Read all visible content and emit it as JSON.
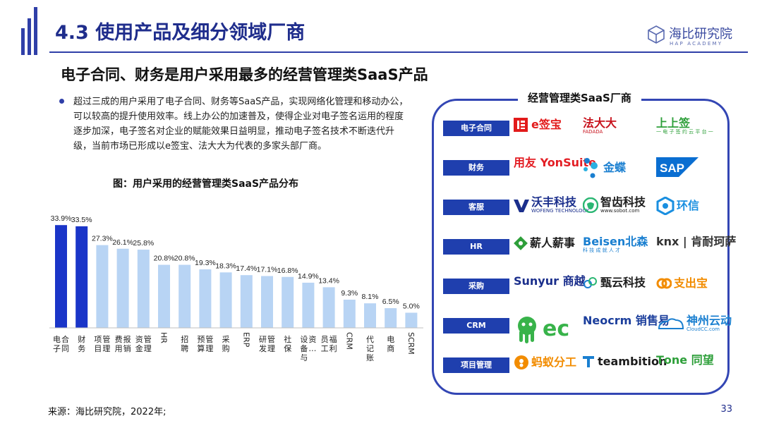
{
  "header": {
    "title": "4.3 使用产品及细分领域厂商",
    "logo_name": "海比研究院",
    "logo_sub": "HAP ACADEMY"
  },
  "subtitle": "电子合同、财务是用户采用最多的经营管理类SaaS产品",
  "bullet": "超过三成的用户采用了电子合同、财务等SaaS产品，实现网络化管理和移动办公，可以较高的提升使用效率。线上办公的加速普及，使得企业对电子签名运用的程度逐步加深，电子签名对企业的赋能效果日益明显，推动电子签名技术不断迭代升级，当前市场已形成以e签宝、法大大为代表的多家头部厂商。",
  "figure_title": "图：用户采用的经营管理类SaaS产品分布",
  "chart_data": {
    "type": "bar",
    "categories": [
      "电子合同",
      "财务",
      "项目管理",
      "费用报销",
      "资金管理",
      "HR",
      "招聘",
      "预算管理",
      "采购",
      "ERP",
      "研发管理",
      "社保",
      "设备与资…",
      "员工福利",
      "CRM",
      "代记账",
      "电商",
      "SCRM"
    ],
    "values": [
      33.9,
      33.5,
      27.3,
      26.1,
      25.8,
      20.8,
      20.8,
      19.3,
      18.3,
      17.4,
      17.1,
      16.8,
      14.9,
      13.4,
      9.3,
      8.1,
      6.5,
      5.0
    ],
    "value_labels": [
      "33.9%",
      "33.5%",
      "27.3%",
      "26.1%",
      "25.8%",
      "20.8%",
      "20.8%",
      "19.3%",
      "18.3%",
      "17.4%",
      "17.1%",
      "16.8%",
      "14.9%",
      "13.4%",
      "9.3%",
      "8.1%",
      "6.5%",
      "5.0%"
    ],
    "highlighted_count": 2,
    "colors": {
      "highlight": "#1a35c8",
      "normal": "#b8d4f4",
      "baseline": "#bfbfbf"
    },
    "ylim": [
      0,
      40
    ],
    "grid": false,
    "title": "",
    "xlabel": "",
    "ylabel": ""
  },
  "panel": {
    "title": "经营管理类SaaS厂商",
    "rows": [
      {
        "category": "电子合同",
        "vendors": [
          {
            "text": "e签宝",
            "color": "#e21b1b",
            "icon": "esign-icon"
          },
          {
            "text": "法大大",
            "sub": "FADADA",
            "color": "#c8141e"
          },
          {
            "text": "上上签",
            "sub": "一 电 子 签 约 云 平 台 一",
            "color": "#2e9f3a"
          }
        ]
      },
      {
        "category": "财务",
        "vendors": [
          {
            "text": "用友 YonSuite",
            "color": "#e31e24"
          },
          {
            "text": "金蝶",
            "color": "#1a7fd0",
            "icon": "dots-icon"
          },
          {
            "text": "SAP",
            "color": "#0a6ed1",
            "icon": "sap-icon"
          }
        ]
      },
      {
        "category": "客服",
        "vendors": [
          {
            "text": "沃丰科技",
            "sub": "WOFENG TECHNOLOGY",
            "color": "#1b2f8c",
            "icon": "w-icon"
          },
          {
            "text": "智齿科技",
            "sub": "www.sobot.com",
            "color": "#1c1c1c",
            "icon": "tooth-icon"
          },
          {
            "text": "环信",
            "color": "#1a8fe0",
            "icon": "ring-icon"
          }
        ]
      },
      {
        "category": "HR",
        "vendors": [
          {
            "text": "薪人薪事",
            "color": "#1c1c1c",
            "icon": "leaf-icon"
          },
          {
            "text": "Beisen北森",
            "sub": "科 技 成 就 人 才",
            "color": "#1a7fd0"
          },
          {
            "text": "knx | 肯耐珂萨",
            "color": "#333333"
          }
        ]
      },
      {
        "category": "采购",
        "vendors": [
          {
            "text": "Sunyur 商越",
            "color": "#1b2f8c"
          },
          {
            "text": "甄云科技",
            "color": "#1c1c1c",
            "icon": "cloud-icon"
          },
          {
            "text": "支出宝",
            "color": "#f28c00",
            "icon": "swirl-icon"
          }
        ]
      },
      {
        "category": "CRM",
        "vendors": [
          {
            "text": "ec",
            "color": "#38b34a",
            "icon": "octopus-icon"
          },
          {
            "text": "Neocrm 销售易",
            "color": "#1b3e9c"
          },
          {
            "text": "神州云动",
            "sub": "CloudCC.com",
            "color": "#1a7fd0",
            "icon": "cloudcc-icon"
          }
        ]
      },
      {
        "category": "项目管理",
        "vendors": [
          {
            "text": "蚂蚁分工",
            "color": "#f28c00",
            "icon": "ant-icon"
          },
          {
            "text": "teambition",
            "color": "#1c1c1c",
            "icon": "t-icon"
          },
          {
            "text": "Tοne 同望",
            "color": "#2e9f3a"
          }
        ]
      }
    ]
  },
  "footer": {
    "source": "来源：海比研究院，2022年;",
    "page": "33"
  }
}
